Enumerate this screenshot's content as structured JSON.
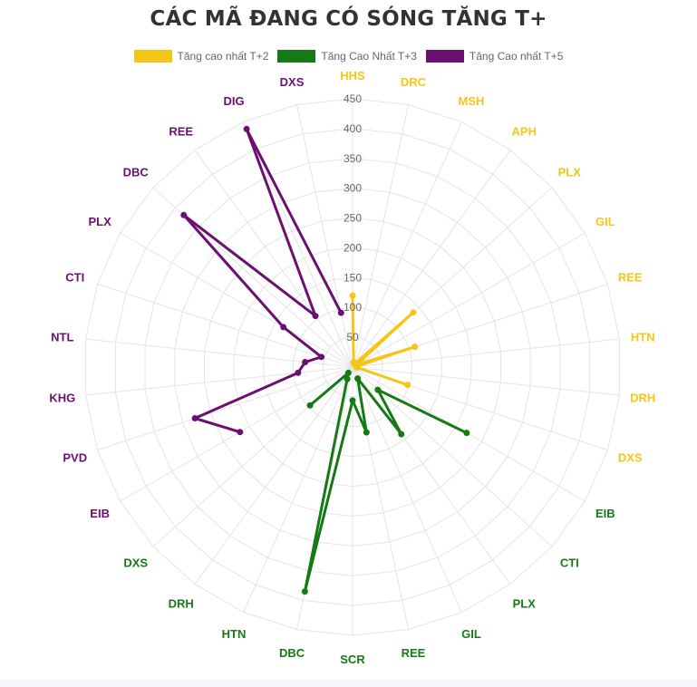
{
  "chart_data": {
    "type": "radar",
    "title": "CÁC MÃ ĐANG CÓ SÓNG TĂNG T+",
    "radial_axis": {
      "min": 0,
      "max": 450,
      "step": 50,
      "ticks": [
        50,
        100,
        150,
        200,
        250,
        300,
        350,
        400,
        450
      ]
    },
    "grid": true,
    "legend_position": "top",
    "categories": [
      "HHS",
      "DRC",
      "MSH",
      "APH",
      "PLX",
      "GIL",
      "REE",
      "HTN",
      "DRH",
      "DXS",
      "EIB",
      "CTI",
      "PLX",
      "GIL",
      "REE",
      "SCR",
      "DBC",
      "HTN",
      "DRH",
      "DXS",
      "EIB",
      "PVD",
      "KHG",
      "NTL",
      "CTI",
      "PLX",
      "DBC",
      "REE",
      "DIG",
      "DXS"
    ],
    "series": [
      {
        "name": "Tăng cao nhất T+2",
        "color": "#f5c518",
        "indices": [
          0,
          1,
          2,
          3,
          4,
          5,
          6,
          7,
          8,
          9
        ],
        "values": [
          120,
          8,
          6,
          8,
          137,
          8,
          110,
          6,
          8,
          97
        ]
      },
      {
        "name": "Tăng Cao Nhất T+3",
        "color": "#157a15",
        "indices": [
          10,
          11,
          12,
          13,
          14,
          15,
          16,
          17,
          18,
          19
        ],
        "values": [
          221,
          57,
          139,
          21,
          112,
          56,
          385,
          22,
          12,
          96
        ]
      },
      {
        "name": "Tăng Cao nhất T+5",
        "color": "#6b1070",
        "indices": [
          20,
          21,
          22,
          23,
          24,
          25,
          26,
          27,
          28,
          29
        ],
        "values": [
          218,
          278,
          92,
          80,
          55,
          134,
          381,
          106,
          437,
          93
        ]
      }
    ],
    "label_colors": {
      "0-9": "#f5c518",
      "10-19": "#157a15",
      "20-29": "#6b1070"
    }
  },
  "legend": [
    {
      "label": "Tăng cao nhất T+2",
      "color": "#f5c518"
    },
    {
      "label": "Tăng Cao Nhất T+3",
      "color": "#157a15"
    },
    {
      "label": "Tăng Cao nhất T+5",
      "color": "#6b1070"
    }
  ],
  "colors": {
    "grid": "#e4e4e4",
    "tick_text": "#666666",
    "title": "#333333"
  }
}
